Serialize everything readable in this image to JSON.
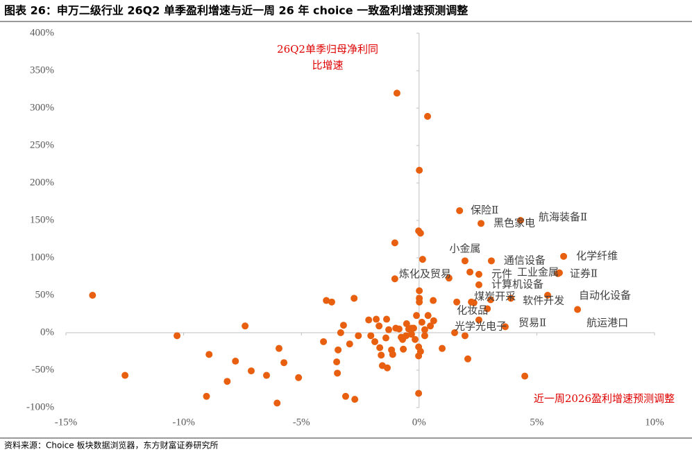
{
  "chart_data": {
    "type": "scatter",
    "title": "图表 26：申万二级行业 26Q2 单季盈利增速与近一周 26 年 choice 一致盈利增速预测调整",
    "source": "资料来源：Choice 板块数据浏览器，东方财富证券研究所",
    "x_label": "近一周2026盈利增速预测调整",
    "y_label": [
      "26Q2单季归母净利同",
      "比增速"
    ],
    "xlim": [
      -15,
      10
    ],
    "ylim": [
      -100,
      400
    ],
    "xticks": [
      {
        "value": -15,
        "label": "-15%"
      },
      {
        "value": -10,
        "label": "-10%"
      },
      {
        "value": -5,
        "label": "-5%"
      },
      {
        "value": 0,
        "label": "0%"
      },
      {
        "value": 5,
        "label": "5%"
      },
      {
        "value": 10,
        "label": "10%"
      }
    ],
    "yticks": [
      {
        "value": -100,
        "label": "-100%"
      },
      {
        "value": -50,
        "label": "-50%"
      },
      {
        "value": 0,
        "label": "0%"
      },
      {
        "value": 50,
        "label": "50%"
      },
      {
        "value": 100,
        "label": "100%"
      },
      {
        "value": 150,
        "label": "150%"
      },
      {
        "value": 200,
        "label": "200%"
      },
      {
        "value": 250,
        "label": "250%"
      },
      {
        "value": 300,
        "label": "300%"
      },
      {
        "value": 350,
        "label": "350%"
      },
      {
        "value": 400,
        "label": "400%"
      }
    ],
    "color": "#e8600f",
    "series": [
      {
        "x": [
          1.72,
          2.63,
          4.31,
          1.95,
          6.14,
          3.07,
          -1.03,
          2.54,
          5.96,
          5.9,
          2.54,
          2.22,
          3.9,
          5.46,
          1.6,
          6.73,
          3.66,
          2.54,
          -13.87,
          -12.49,
          -10.28,
          -7.39,
          -8.92,
          -7.8,
          -8.15,
          -9.03,
          -7.13,
          -6.48,
          -5.95,
          -5.74,
          -5.12,
          -6.03,
          -4.06,
          -3.94,
          -3.71,
          -3.44,
          -3.5,
          -3.47,
          -3.33,
          -3.21,
          -2.95,
          -3.12,
          -2.73,
          -2.76,
          -2.58,
          -2.14,
          -2.05,
          -1.88,
          -1.82,
          -1.7,
          -1.67,
          -1.61,
          -1.56,
          -1.41,
          -1.35,
          -1.17,
          -1.12,
          -0.85,
          -0.76,
          -0.67,
          -0.53,
          -0.44,
          -0.32,
          -0.23,
          -0.17,
          -0.11,
          -0.02,
          -0.02,
          0.01,
          0.01,
          0.01,
          -0.02,
          0.01,
          0.36,
          -0.94,
          -1.03,
          -0.02,
          0.06,
          0.15,
          0.12,
          0.24,
          0.38,
          0.48,
          0.6,
          0.62,
          0.06,
          0.98,
          1.51,
          2.07,
          1.95,
          4.49,
          2.16,
          1.27,
          2.9,
          3.04,
          2.33,
          0.24,
          -0.32,
          -0.99,
          -1.29,
          -1.38,
          -0.7,
          -0.55
        ],
        "y": [
          163,
          146,
          150,
          96,
          102,
          96,
          72,
          78,
          80,
          79,
          64,
          41,
          46,
          50,
          41,
          31,
          8,
          17,
          50,
          -57,
          -4,
          9,
          -29,
          -38,
          -65,
          -85,
          -51,
          -57,
          -21,
          -40,
          -60,
          -94,
          -12,
          43,
          41,
          -23,
          -39,
          -54,
          0,
          10,
          -15,
          -85,
          -89,
          46,
          -4,
          17,
          -4,
          -12,
          18,
          9,
          -20,
          -30,
          -44,
          -7,
          -47,
          -23,
          -29,
          5,
          -6,
          -22,
          12,
          5,
          -2,
          6,
          -9,
          23,
          -19,
          -31,
          46,
          56,
          41,
          -81,
          217,
          289,
          320,
          120,
          136,
          133,
          98,
          14,
          4,
          23,
          9,
          43,
          16,
          -25,
          -21,
          0,
          -35,
          -4,
          -58,
          81,
          73,
          32,
          44,
          40,
          -4,
          6,
          6,
          4,
          18,
          -9,
          -4
        ],
        "labels": [
          "保险Ⅱ",
          "黑色家电",
          "航海装备Ⅱ",
          "小金属",
          "化学纤维",
          "通信设备",
          "炼化及贸易",
          "元件",
          "工业金属",
          "证券Ⅱ",
          "计算机设备",
          "煤炭开采",
          "软件开发",
          "自动化设备",
          "化妆品",
          "航运港口",
          "贸易Ⅱ",
          "光学光电子",
          null,
          null,
          null,
          null,
          null,
          null,
          null,
          null,
          null,
          null,
          null,
          null,
          null,
          null,
          null,
          null,
          null,
          null,
          null,
          null,
          null,
          null,
          null,
          null,
          null,
          null,
          null,
          null,
          null,
          null,
          null,
          null,
          null,
          null,
          null,
          null,
          null,
          null,
          null,
          null,
          null,
          null,
          null,
          null,
          null,
          null,
          null,
          null,
          null,
          null,
          null,
          null,
          null,
          null,
          null,
          null,
          null,
          null,
          null,
          null,
          null,
          null,
          null,
          null,
          null,
          null,
          null,
          null,
          null,
          null,
          null,
          null,
          null,
          null,
          null,
          null,
          null,
          null,
          null,
          null,
          null,
          null,
          null,
          null,
          null
        ]
      }
    ]
  }
}
